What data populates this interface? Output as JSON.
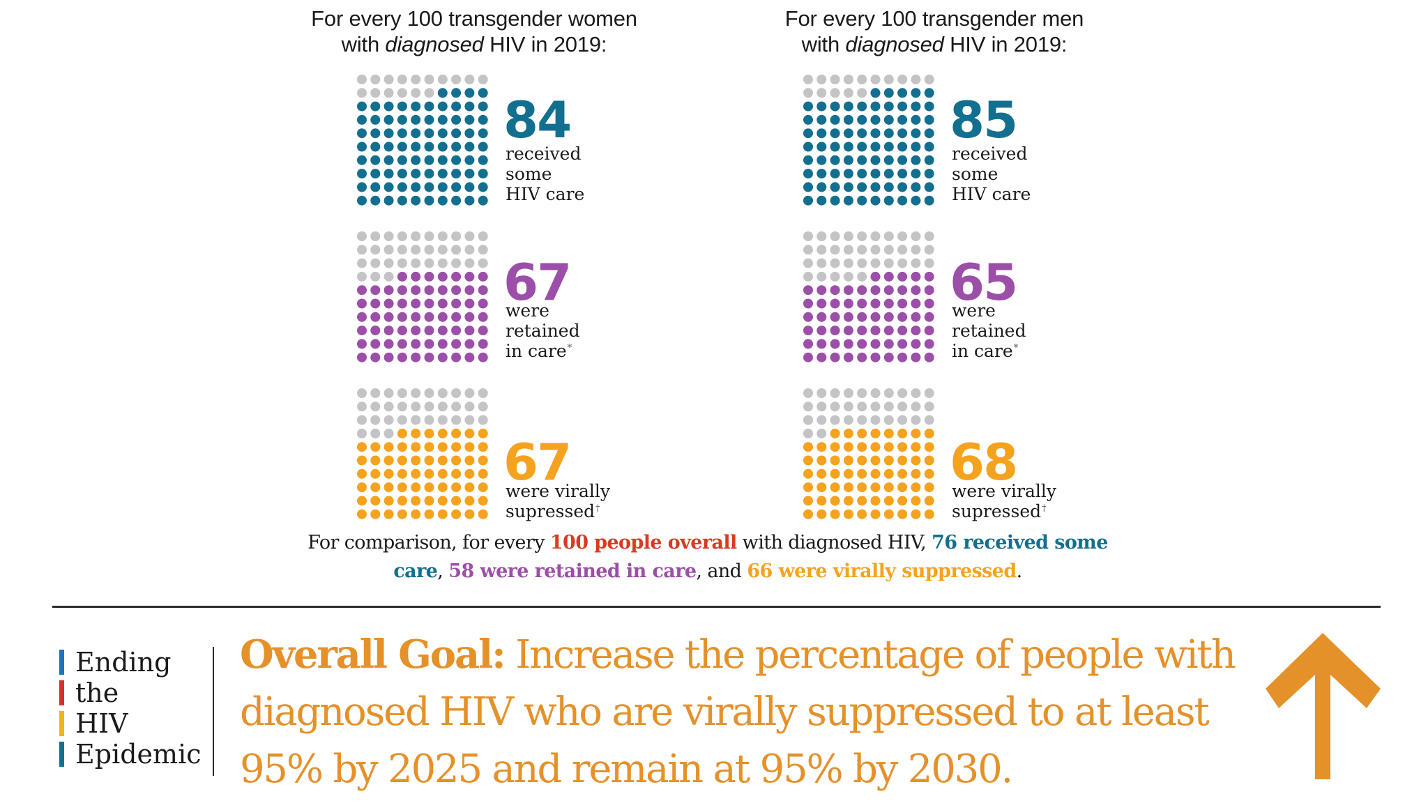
{
  "panels": [
    {
      "id": "women",
      "heading_pre": "For every 100 transgender women",
      "heading_with": "with ",
      "heading_em": "diagnosed",
      "heading_post": " HIV in 2019:",
      "metrics": [
        {
          "value": "84",
          "label": "received\nsome\nHIV care",
          "footnote": ""
        },
        {
          "value": "67",
          "label": "were\nretained\nin care",
          "footnote": "*"
        },
        {
          "value": "67",
          "label": "were virally\nsupressed",
          "footnote": "†"
        }
      ]
    },
    {
      "id": "men",
      "heading_pre": "For every 100 transgender men",
      "heading_with": "with ",
      "heading_em": "diagnosed",
      "heading_post": " HIV in 2019:",
      "metrics": [
        {
          "value": "85",
          "label": "received\nsome\nHIV care",
          "footnote": ""
        },
        {
          "value": "65",
          "label": "were\nretained\nin care",
          "footnote": "*"
        },
        {
          "value": "68",
          "label": "were virally\nsupressed",
          "footnote": "†"
        }
      ]
    }
  ],
  "colors": {
    "care": "#136f8f",
    "retained": "#9b4fa8",
    "suppressed": "#f5a21f",
    "empty": "#c4c4c6",
    "overall": "#d83b22",
    "goal": "#e5912a",
    "logo_bars": [
      "#1f72c4",
      "#d62f2f",
      "#f7b11c",
      "#15708f"
    ]
  },
  "chart_data": {
    "type": "waffle",
    "title": "HIV care outcomes for every 100 transgender people with diagnosed HIV in 2019",
    "grid": "10x10",
    "categories": [
      "received some HIV care",
      "were retained in care",
      "were virally supressed"
    ],
    "series": [
      {
        "name": "transgender women",
        "values": [
          84,
          67,
          67
        ]
      },
      {
        "name": "transgender men",
        "values": [
          85,
          65,
          68
        ]
      }
    ],
    "comparison_overall": {
      "received_some_care": 76,
      "retained_in_care": 58,
      "virally_suppressed": 66
    },
    "ylim": [
      0,
      100
    ]
  },
  "comparison": {
    "t1": "For comparison, for every ",
    "overall": "100 people overall",
    "t2": " with diagnosed HIV, ",
    "care": "76 received some care",
    "t3": ", ",
    "retained": "58 were retained in care",
    "t4": ", and ",
    "suppressed": "66 were virally suppressed",
    "t5": "."
  },
  "logo": {
    "words": [
      "Ending",
      "the",
      "HIV",
      "Epidemic"
    ]
  },
  "goal": {
    "lead": "Overall Goal:",
    "text": " Increase the percentage of people with diagnosed HIV who are virally suppressed to at least 95% by 2025 and remain at 95% by 2030.",
    "icon": "arrow-up-icon"
  }
}
